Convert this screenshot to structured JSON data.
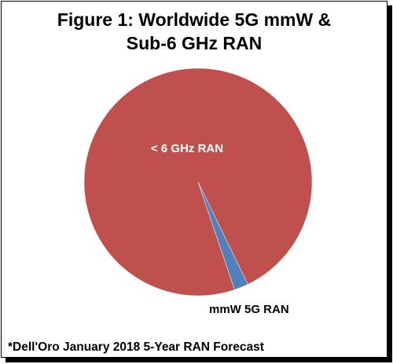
{
  "chart_data": {
    "type": "pie",
    "title_lines": [
      "Figure 1: Worldwide 5G mmW &",
      "Sub-6 GHz RAN"
    ],
    "slices": [
      {
        "label": "< 6 GHz RAN",
        "value": 98,
        "color": "#C0504D",
        "label_color": "#FFFFFF"
      },
      {
        "label": "mmW 5G RAN",
        "value": 2,
        "color": "#4F81BD",
        "label_color": "#000000"
      }
    ],
    "legend": "none"
  },
  "footnote": "*Dell'Oro January 2018 5-Year RAN Forecast"
}
